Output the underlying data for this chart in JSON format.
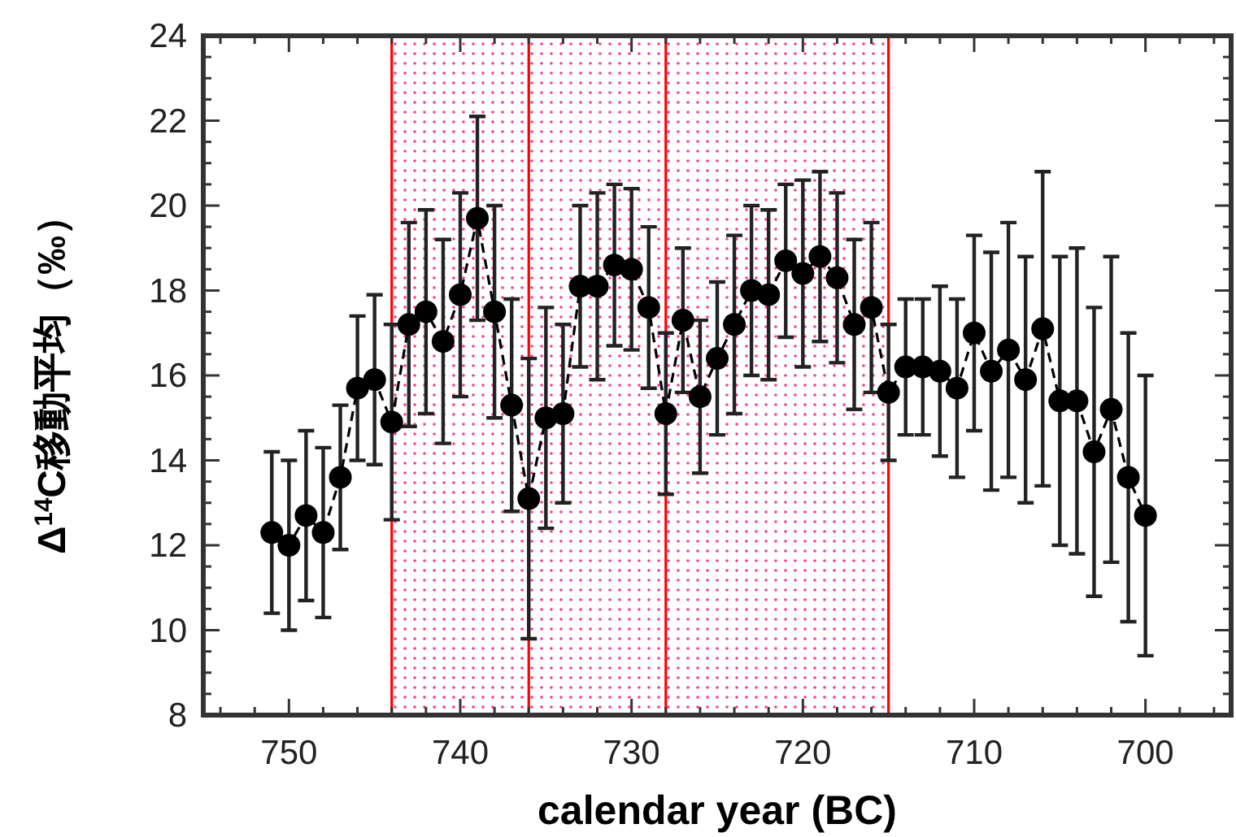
{
  "chart_data": {
    "type": "line",
    "xlabel": "calendar year (BC)",
    "ylabel": "Δ$^{14}$C移動平均（‰）",
    "xlim": [
      755,
      695
    ],
    "ylim": [
      8,
      24
    ],
    "xticks": [
      {
        "value": 754,
        "label": null
      },
      {
        "value": 752,
        "label": null
      },
      750,
      {
        "value": 748,
        "label": null
      },
      {
        "value": 746,
        "label": null
      },
      {
        "value": 744,
        "label": null
      },
      {
        "value": 742,
        "label": null
      },
      740,
      {
        "value": 738,
        "label": null
      },
      {
        "value": 736,
        "label": null
      },
      {
        "value": 734,
        "label": null
      },
      {
        "value": 732,
        "label": null
      },
      730,
      {
        "value": 728,
        "label": null
      },
      {
        "value": 726,
        "label": null
      },
      {
        "value": 724,
        "label": null
      },
      {
        "value": 722,
        "label": null
      },
      720,
      {
        "value": 718,
        "label": null
      },
      {
        "value": 716,
        "label": null
      },
      {
        "value": 714,
        "label": null
      },
      {
        "value": 712,
        "label": null
      },
      710,
      {
        "value": 708,
        "label": null
      },
      {
        "value": 706,
        "label": null
      },
      {
        "value": 704,
        "label": null
      },
      {
        "value": 702,
        "label": null
      },
      700,
      {
        "value": 698,
        "label": null
      },
      {
        "value": 696,
        "label": null
      }
    ],
    "yticks": [
      8,
      {
        "value": 8.5,
        "label": null
      },
      {
        "value": 9,
        "label": null
      },
      {
        "value": 9.5,
        "label": null
      },
      10,
      {
        "value": 10.5,
        "label": null
      },
      {
        "value": 11,
        "label": null
      },
      {
        "value": 11.5,
        "label": null
      },
      12,
      {
        "value": 12.5,
        "label": null
      },
      {
        "value": 13,
        "label": null
      },
      {
        "value": 13.5,
        "label": null
      },
      14,
      {
        "value": 14.5,
        "label": null
      },
      {
        "value": 15,
        "label": null
      },
      {
        "value": 15.5,
        "label": null
      },
      16,
      {
        "value": 16.5,
        "label": null
      },
      {
        "value": 17,
        "label": null
      },
      {
        "value": 17.5,
        "label": null
      },
      18,
      {
        "value": 18.5,
        "label": null
      },
      {
        "value": 19,
        "label": null
      },
      {
        "value": 19.5,
        "label": null
      },
      20,
      {
        "value": 20.5,
        "label": null
      },
      {
        "value": 21,
        "label": null
      },
      {
        "value": 21.5,
        "label": null
      },
      22,
      {
        "value": 22.5,
        "label": null
      },
      {
        "value": 23,
        "label": null
      },
      {
        "value": 23.5,
        "label": null
      },
      24
    ],
    "marker": "circle",
    "line_style": "dashed",
    "x": [
      751,
      750,
      749,
      748,
      747,
      746,
      745,
      744,
      743,
      742,
      741,
      740,
      739,
      738,
      737,
      736,
      735,
      734,
      733,
      732,
      731,
      730,
      729,
      728,
      727,
      726,
      725,
      724,
      723,
      722,
      721,
      720,
      719,
      718,
      717,
      716,
      715,
      714,
      713,
      712,
      711,
      710,
      709,
      708,
      707,
      706,
      705,
      704,
      703,
      702,
      701,
      700
    ],
    "series": [
      {
        "color": "#000000",
        "values": [
          12.3,
          12.0,
          12.7,
          12.3,
          13.6,
          15.7,
          15.9,
          14.9,
          17.2,
          17.5,
          16.8,
          17.9,
          19.7,
          17.5,
          15.3,
          13.1,
          15.0,
          15.1,
          18.1,
          18.1,
          18.6,
          18.5,
          17.6,
          15.1,
          17.3,
          15.5,
          16.4,
          17.2,
          18.0,
          17.9,
          18.7,
          18.4,
          18.8,
          18.3,
          17.2,
          17.6,
          15.6,
          16.2,
          16.2,
          16.1,
          15.7,
          17.0,
          16.1,
          16.6,
          15.9,
          17.1,
          15.4,
          15.4,
          14.2,
          15.2,
          13.6,
          12.7
        ],
        "errors": [
          1.9,
          2.0,
          2.0,
          2.0,
          1.7,
          1.7,
          2.0,
          2.3,
          2.4,
          2.4,
          2.4,
          2.4,
          2.4,
          2.5,
          2.5,
          3.3,
          2.6,
          2.1,
          1.9,
          2.2,
          1.9,
          1.9,
          1.9,
          1.9,
          1.7,
          1.8,
          1.8,
          2.1,
          2.0,
          2.0,
          1.8,
          2.2,
          2.0,
          2.0,
          2.0,
          2.0,
          1.6,
          1.6,
          1.6,
          2.0,
          2.1,
          2.3,
          2.8,
          3.0,
          2.9,
          3.7,
          3.4,
          3.6,
          3.4,
          3.6,
          3.4,
          3.3
        ]
      }
    ],
    "bands": [
      {
        "axis": "x",
        "from": 744,
        "to": 736,
        "color": "#ff3399"
      },
      {
        "axis": "x",
        "from": 736,
        "to": 728,
        "color": "#ff3399"
      },
      {
        "axis": "x",
        "from": 728,
        "to": 715,
        "color": "#ff3399"
      }
    ],
    "ref_lines": [
      {
        "axis": "x",
        "value": 744,
        "color": "#ff0000"
      },
      {
        "axis": "x",
        "value": 736,
        "color": "#ff0000"
      },
      {
        "axis": "x",
        "value": 728,
        "color": "#ff0000"
      },
      {
        "axis": "x",
        "value": 715,
        "color": "#ff0000"
      }
    ]
  }
}
